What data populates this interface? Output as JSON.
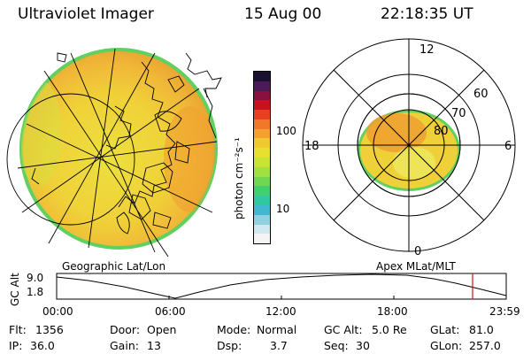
{
  "header": {
    "instrument": "Ultraviolet Imager",
    "date": "15 Aug 00",
    "time": "22:18:35 UT"
  },
  "colorbar": {
    "unit_label": "photon cm⁻²s⁻¹",
    "tick_labels": [
      "100",
      "10"
    ],
    "colors": [
      "#1a1030",
      "#4a1a5a",
      "#8a1040",
      "#c81020",
      "#e84020",
      "#f07828",
      "#f4a030",
      "#f0c830",
      "#e8e030",
      "#c8e430",
      "#a0e040",
      "#70d850",
      "#40d070",
      "#30c8a0",
      "#40b8d0",
      "#90d0e0",
      "#d0e8f0",
      "#f4f4f4"
    ]
  },
  "geo_map": {
    "label": "Geographic Lat/Lon"
  },
  "polar_plot": {
    "label": "Apex  MLat/MLT",
    "mlt_labels": {
      "top": "12",
      "left": "18",
      "right": "6",
      "bottom": "0"
    },
    "lat_labels": [
      "60",
      "70",
      "80"
    ]
  },
  "altitude_plot": {
    "ylabel": "GC Alt",
    "yticks": [
      "9.0",
      "1.8"
    ],
    "xticks": [
      "00:00",
      "06:00",
      "12:00",
      "18:00",
      "23:59"
    ],
    "current_time_marker_color": "#d01010"
  },
  "status": {
    "flt_label": "Flt:",
    "flt_value": "1356",
    "ip_label": "IP:",
    "ip_value": "36.0",
    "door_label": "Door:",
    "door_value": "Open",
    "gain_label": "Gain:",
    "gain_value": "13",
    "mode_label": "Mode:",
    "mode_value": "Normal",
    "dsp_label": "Dsp:",
    "dsp_value": "3.7",
    "gcalt_label": "GC Alt:",
    "gcalt_value": "5.0 Re",
    "seq_label": "Seq:",
    "seq_value": "30",
    "glat_label": "GLat:",
    "glat_value": "81.0",
    "glon_label": "GLon:",
    "glon_value": "257.0"
  }
}
